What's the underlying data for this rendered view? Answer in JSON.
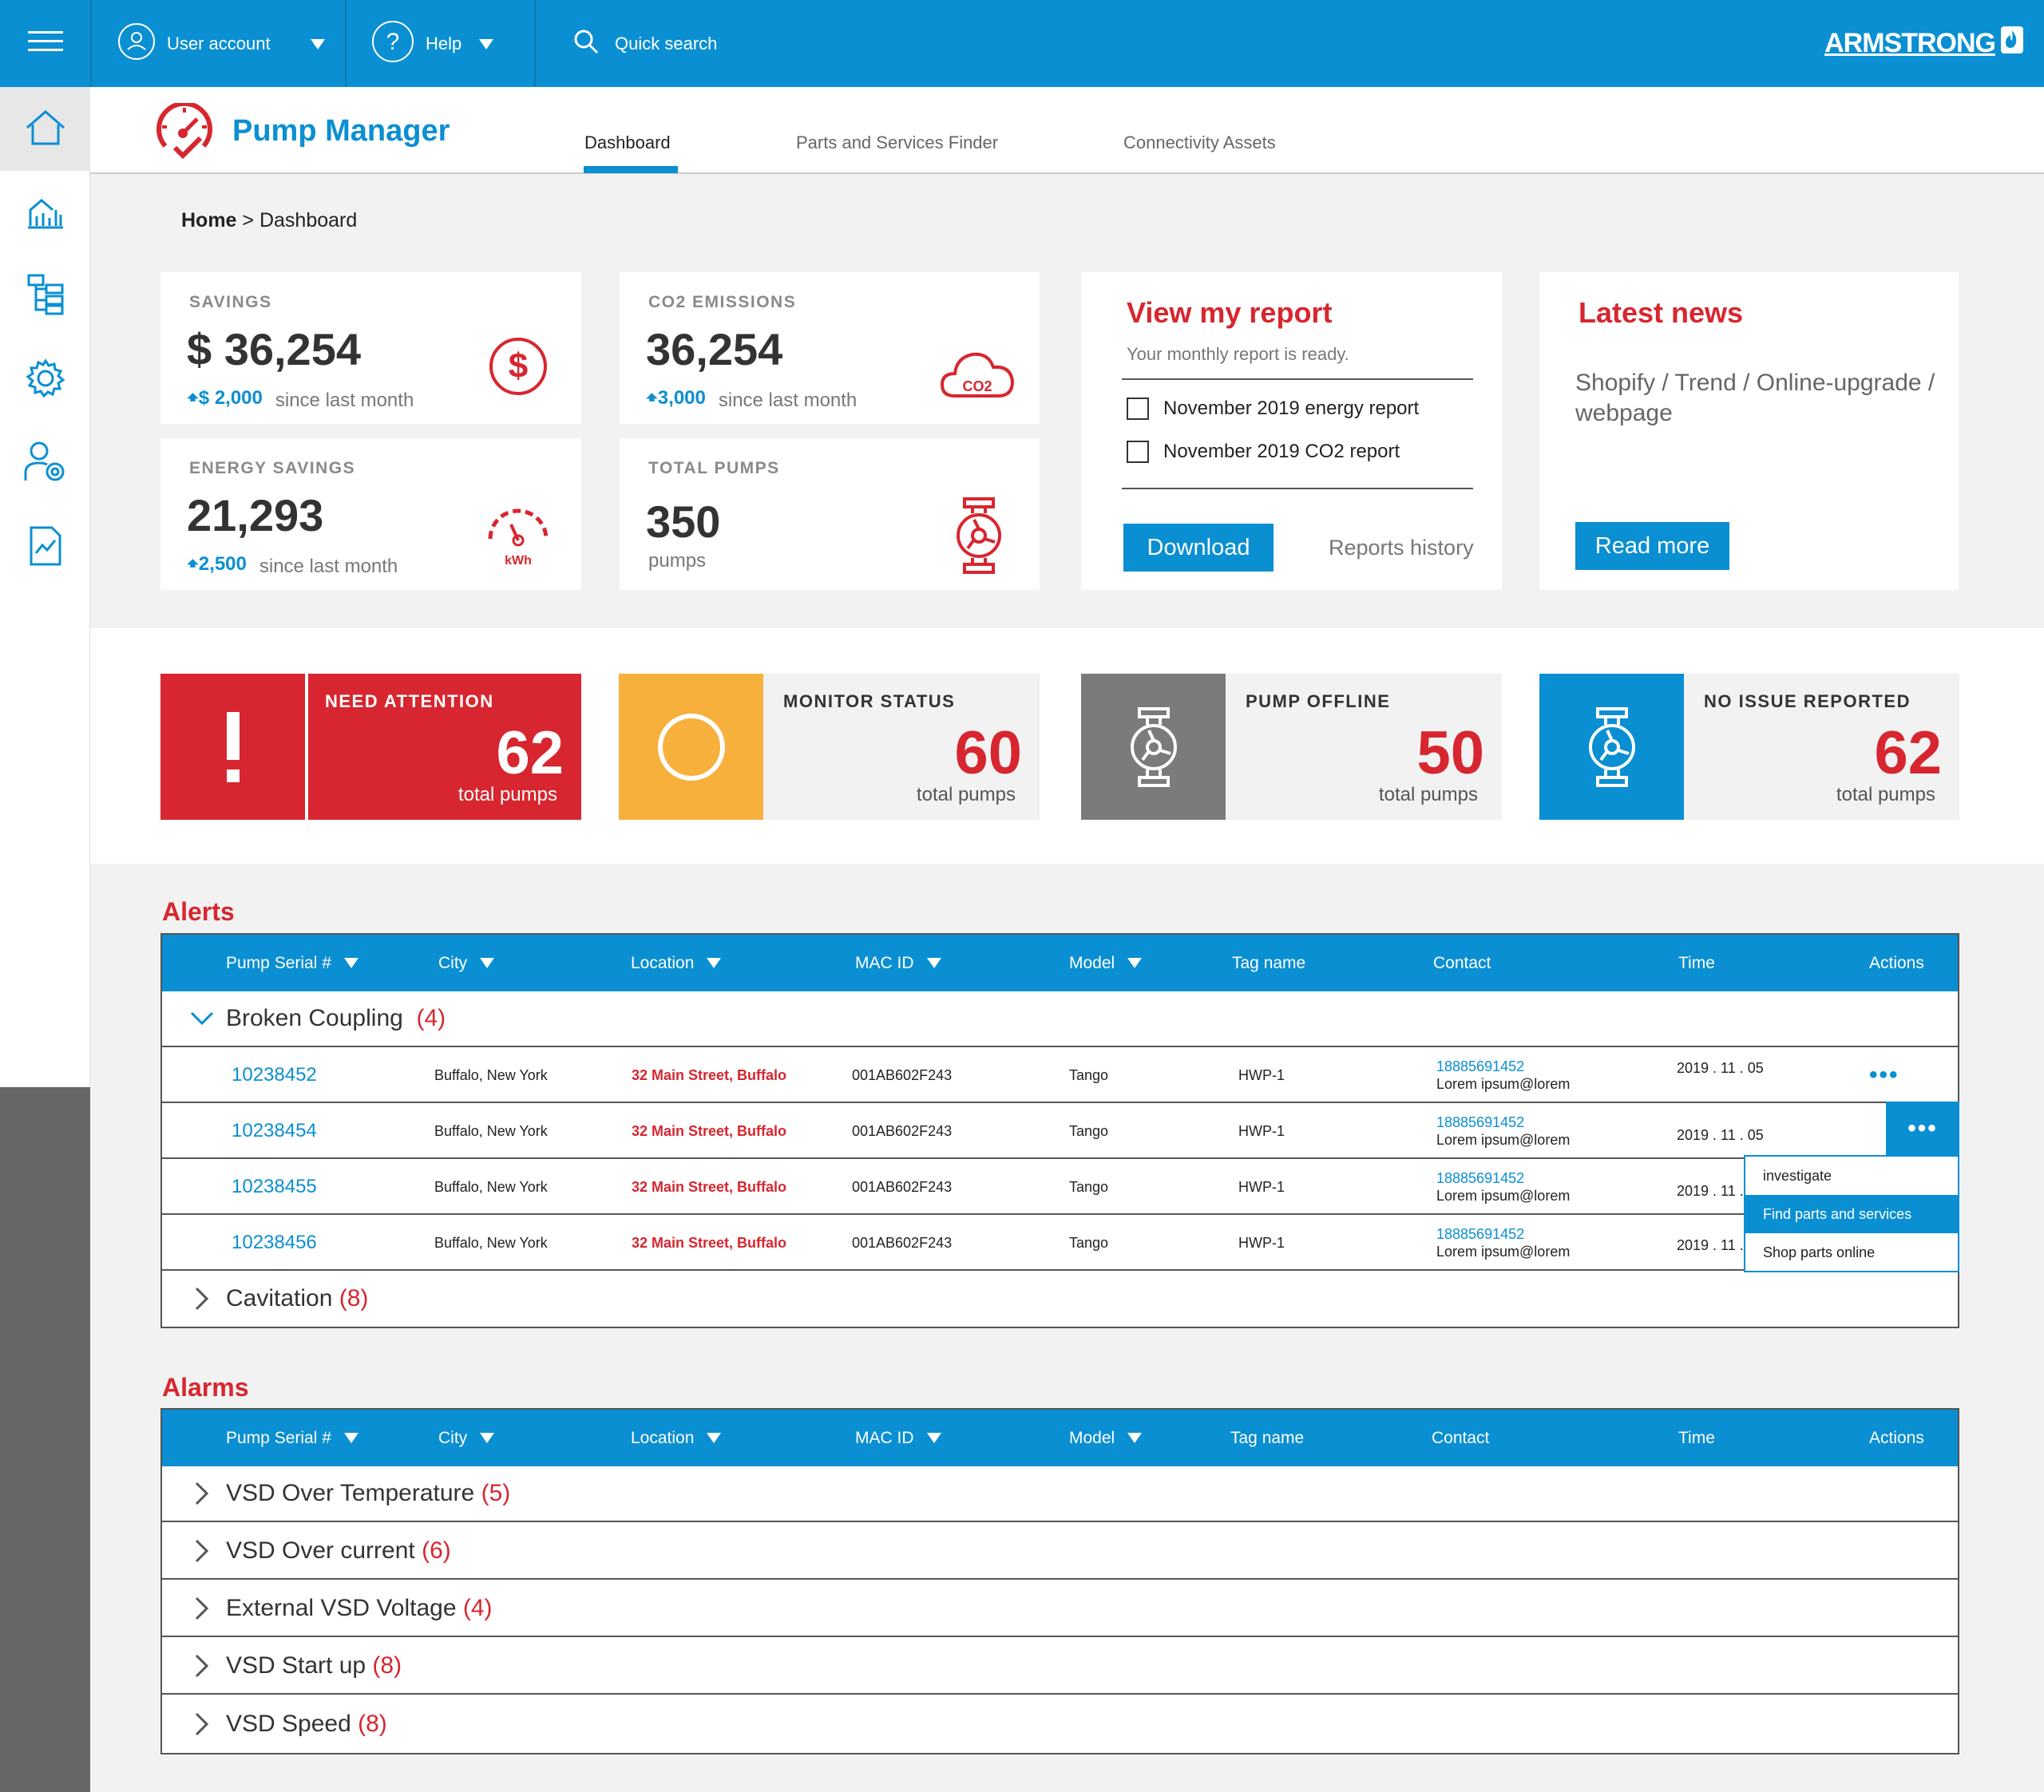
{
  "topbar": {
    "user_account": "User account",
    "help": "Help",
    "quick_search": "Quick search",
    "brand": "ARMSTRONG"
  },
  "header": {
    "app_title": "Pump Manager",
    "tabs": [
      {
        "label": "Dashboard",
        "active": true
      },
      {
        "label": "Parts and Services Finder",
        "active": false
      },
      {
        "label": "Connectivity Assets",
        "active": false
      }
    ]
  },
  "breadcrumb": {
    "home": "Home",
    "sep": " > ",
    "current": "Dashboard"
  },
  "stats": {
    "savings": {
      "label": "SAVINGS",
      "value": "$ 36,254",
      "delta": "$ 2,000",
      "since": "since last month"
    },
    "co2": {
      "label": "CO2 EMISSIONS",
      "value": "36,254",
      "delta": "3,000",
      "since": "since last month",
      "icon_text": "CO2"
    },
    "energy": {
      "label": "ENERGY SAVINGS",
      "value": "21,293",
      "delta": "2,500",
      "since": "since last month",
      "icon_text": "kWh"
    },
    "pumps": {
      "label": "TOTAL PUMPS",
      "value": "350",
      "unit": "pumps"
    }
  },
  "report": {
    "title": "View my report",
    "subtitle": "Your monthly report is ready.",
    "items": [
      "November 2019 energy report",
      "November 2019 CO2 report"
    ],
    "download": "Download",
    "history": "Reports history"
  },
  "news": {
    "title": "Latest news",
    "text": "Shopify / Trend / Online-upgrade / webpage",
    "button": "Read more"
  },
  "status": [
    {
      "label": "NEED ATTENTION",
      "value": "62",
      "sub": "total pumps",
      "icon": "exclamation-icon"
    },
    {
      "label": "MONITOR STATUS",
      "value": "60",
      "sub": "total pumps",
      "icon": "circle-icon"
    },
    {
      "label": "PUMP OFFLINE",
      "value": "50",
      "sub": "total pumps",
      "icon": "pump-icon"
    },
    {
      "label": "NO ISSUE REPORTED",
      "value": "62",
      "sub": "total pumps",
      "icon": "pump-icon"
    }
  ],
  "alerts": {
    "title": "Alerts",
    "columns": [
      "Pump Serial #",
      "City",
      "Location",
      "MAC ID",
      "Model",
      "Tag name",
      "Contact",
      "Time",
      "Actions"
    ],
    "groups": [
      {
        "name": "Broken Coupling",
        "count": "(4)",
        "expanded": true
      },
      {
        "name": "Cavitation",
        "count": "(8)",
        "expanded": false
      }
    ],
    "rows": [
      {
        "serial": "10238452",
        "city": "Buffalo, New York",
        "location": "32 Main Street, Buffalo",
        "mac": "001AB602F243",
        "model": "Tango",
        "tag": "HWP-1",
        "phone": "18885691452",
        "email": "Lorem ipsum@lorem",
        "time": "2019 . 11 . 05"
      },
      {
        "serial": "10238454",
        "city": "Buffalo, New York",
        "location": "32 Main Street, Buffalo",
        "mac": "001AB602F243",
        "model": "Tango",
        "tag": "HWP-1",
        "phone": "18885691452",
        "email": "Lorem ipsum@lorem",
        "time": "2019 . 11 . 05"
      },
      {
        "serial": "10238455",
        "city": "Buffalo, New York",
        "location": "32 Main Street, Buffalo",
        "mac": "001AB602F243",
        "model": "Tango",
        "tag": "HWP-1",
        "phone": "18885691452",
        "email": "Lorem ipsum@lorem",
        "time": "2019 . 11 ."
      },
      {
        "serial": "10238456",
        "city": "Buffalo, New York",
        "location": "32 Main Street, Buffalo",
        "mac": "001AB602F243",
        "model": "Tango",
        "tag": "HWP-1",
        "phone": "18885691452",
        "email": "Lorem ipsum@lorem",
        "time": "2019 . 11 ."
      }
    ],
    "actions_dots": "•••",
    "menu": [
      "investigate",
      "Find parts and services",
      "Shop parts online"
    ]
  },
  "alarms": {
    "title": "Alarms",
    "columns": [
      "Pump Serial #",
      "City",
      "Location",
      "MAC ID",
      "Model",
      "Tag name",
      "Contact",
      "Time",
      "Actions"
    ],
    "groups": [
      {
        "name": "VSD Over Temperature",
        "count": "(5)"
      },
      {
        "name": "VSD Over current",
        "count": "(6)"
      },
      {
        "name": "External VSD Voltage",
        "count": "(4)"
      },
      {
        "name": "VSD Start up",
        "count": "(8)"
      },
      {
        "name": "VSD Speed",
        "count": "(8)"
      }
    ]
  },
  "colors": {
    "primary": "#0a8fd2",
    "red": "#d7262f",
    "amber": "#f7b03c",
    "grey": "#7b7b7b"
  }
}
